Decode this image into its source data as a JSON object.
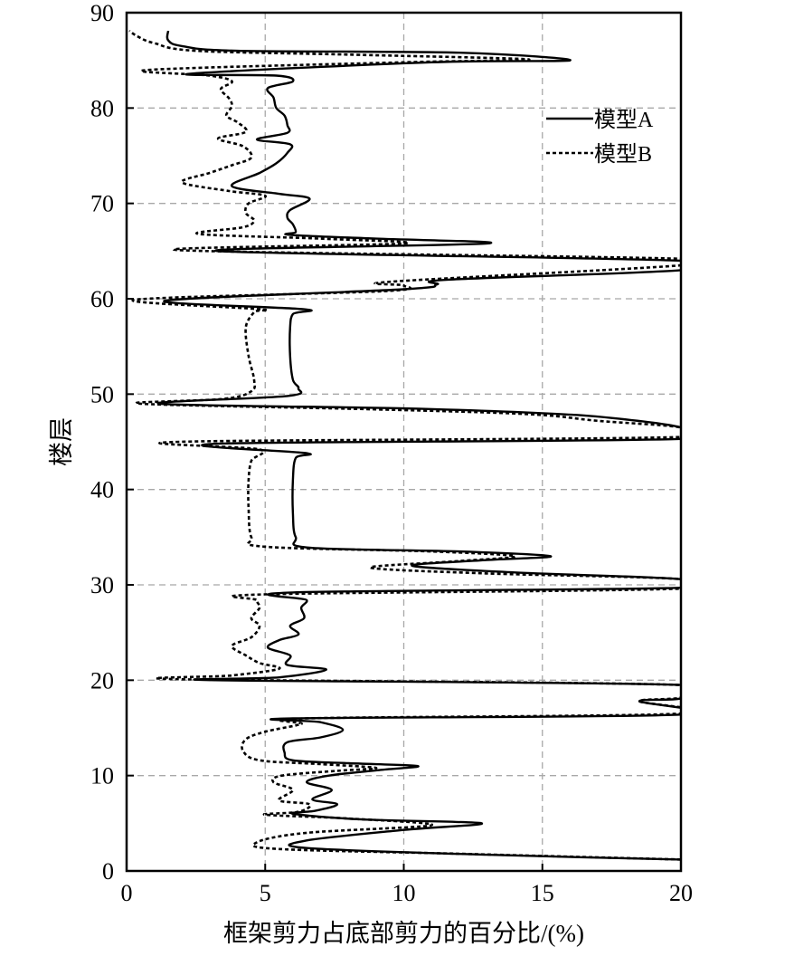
{
  "chart_data": {
    "type": "line",
    "title": "",
    "xlabel": "框架剪力占底部剪力的百分比/(%)",
    "ylabel": "楼层",
    "xlim": [
      0,
      20
    ],
    "ylim": [
      0,
      90
    ],
    "xticks": [
      0,
      5,
      10,
      15,
      20
    ],
    "yticks": [
      0,
      10,
      20,
      30,
      40,
      50,
      60,
      70,
      80,
      90
    ],
    "grid": true,
    "legend_position": "top-right",
    "series": [
      {
        "name": "模型A",
        "style": "solid",
        "color": "#000000",
        "points": [
          [
            20,
            1.2
          ],
          [
            13,
            1.7
          ],
          [
            6.5,
            2.4
          ],
          [
            6.5,
            3.2
          ],
          [
            10,
            4.3
          ],
          [
            12.8,
            5.0
          ],
          [
            8.5,
            5.4
          ],
          [
            6.0,
            6.0
          ],
          [
            6.8,
            6.3
          ],
          [
            7.6,
            7.0
          ],
          [
            6.7,
            7.5
          ],
          [
            7.4,
            8.5
          ],
          [
            6.5,
            9.3
          ],
          [
            7.3,
            10.0
          ],
          [
            9.2,
            10.6
          ],
          [
            10.5,
            11.0
          ],
          [
            8.0,
            11.3
          ],
          [
            6.0,
            11.6
          ],
          [
            5.7,
            12.4
          ],
          [
            5.8,
            13.5
          ],
          [
            7.0,
            14.0
          ],
          [
            7.8,
            14.8
          ],
          [
            7.0,
            15.6
          ],
          [
            6.0,
            16.0
          ],
          [
            20,
            16.4
          ],
          [
            18.5,
            17.8
          ],
          [
            20,
            18.1
          ],
          [
            20,
            19.5
          ],
          [
            3.2,
            20.0
          ],
          [
            5.5,
            20.3
          ],
          [
            7.2,
            21.1
          ],
          [
            5.8,
            21.6
          ],
          [
            5.9,
            22.6
          ],
          [
            5.1,
            23.4
          ],
          [
            5.5,
            24.2
          ],
          [
            6.2,
            24.8
          ],
          [
            5.9,
            25.7
          ],
          [
            6.4,
            26.5
          ],
          [
            6.3,
            27.6
          ],
          [
            6.5,
            28.4
          ],
          [
            6.0,
            29.2
          ],
          [
            20,
            29.7
          ],
          [
            20,
            30.6
          ],
          [
            14.0,
            31.3
          ],
          [
            10.3,
            32.0
          ],
          [
            13.0,
            32.6
          ],
          [
            15.3,
            33.0
          ],
          [
            12.0,
            33.5
          ],
          [
            6.6,
            33.9
          ],
          [
            6.1,
            35.0
          ],
          [
            6.0,
            37.5
          ],
          [
            6.0,
            41.0
          ],
          [
            6.1,
            43.3
          ],
          [
            6.5,
            43.8
          ],
          [
            3.3,
            44.8
          ],
          [
            20,
            45.3
          ],
          [
            20,
            46.5
          ],
          [
            17.5,
            47.5
          ],
          [
            15.0,
            48.0
          ],
          [
            10.0,
            48.5
          ],
          [
            1.2,
            49.0
          ],
          [
            5.8,
            49.8
          ],
          [
            6.2,
            50.6
          ],
          [
            6.0,
            51.5
          ],
          [
            5.9,
            54.0
          ],
          [
            5.9,
            57.0
          ],
          [
            6.0,
            58.4
          ],
          [
            6.4,
            58.9
          ],
          [
            1.4,
            59.8
          ],
          [
            10.0,
            61.0
          ],
          [
            11.2,
            61.5
          ],
          [
            11.6,
            62.0
          ],
          [
            20,
            63.0
          ],
          [
            20,
            64.0
          ],
          [
            3.3,
            65.0
          ],
          [
            13.0,
            65.8
          ],
          [
            9.0,
            66.3
          ],
          [
            5.9,
            66.7
          ],
          [
            6.1,
            67.0
          ],
          [
            6.0,
            67.8
          ],
          [
            5.8,
            68.5
          ],
          [
            5.9,
            69.3
          ],
          [
            6.6,
            70.5
          ],
          [
            5.5,
            71.0
          ],
          [
            3.8,
            71.8
          ],
          [
            4.8,
            73.2
          ],
          [
            5.4,
            74.2
          ],
          [
            5.8,
            75.3
          ],
          [
            5.9,
            76.2
          ],
          [
            4.7,
            76.7
          ],
          [
            5.8,
            77.4
          ],
          [
            5.8,
            78.2
          ],
          [
            5.7,
            79.2
          ],
          [
            5.4,
            80.0
          ],
          [
            5.3,
            81.1
          ],
          [
            5.1,
            82.1
          ],
          [
            6.0,
            82.8
          ],
          [
            5.4,
            83.4
          ],
          [
            2.3,
            83.6
          ],
          [
            11.0,
            84.8
          ],
          [
            16.0,
            85.0
          ],
          [
            12.0,
            85.8
          ],
          [
            4.0,
            86.0
          ],
          [
            2.0,
            86.5
          ],
          [
            1.5,
            87.1
          ],
          [
            1.5,
            88.1
          ]
        ]
      },
      {
        "name": "模型B",
        "style": "dashed",
        "color": "#000000",
        "points": [
          [
            20,
            1.2
          ],
          [
            12,
            1.8
          ],
          [
            5.5,
            2.3
          ],
          [
            4.7,
            3.0
          ],
          [
            6.5,
            4.0
          ],
          [
            11.0,
            4.8
          ],
          [
            8.0,
            5.5
          ],
          [
            5.0,
            5.9
          ],
          [
            6.2,
            6.2
          ],
          [
            6.6,
            7.0
          ],
          [
            5.5,
            7.4
          ],
          [
            6.0,
            8.5
          ],
          [
            5.3,
            9.3
          ],
          [
            5.6,
            10.0
          ],
          [
            7.6,
            10.5
          ],
          [
            9.0,
            10.8
          ],
          [
            7.0,
            11.2
          ],
          [
            4.8,
            11.6
          ],
          [
            4.2,
            12.6
          ],
          [
            4.3,
            13.8
          ],
          [
            5.0,
            14.6
          ],
          [
            6.3,
            15.4
          ],
          [
            6.5,
            16.0
          ],
          [
            20,
            16.5
          ],
          [
            18.5,
            17.8
          ],
          [
            20,
            18.2
          ],
          [
            20,
            19.5
          ],
          [
            2.0,
            20.1
          ],
          [
            3.8,
            20.5
          ],
          [
            5.5,
            21.2
          ],
          [
            4.8,
            21.8
          ],
          [
            4.3,
            22.6
          ],
          [
            3.8,
            23.6
          ],
          [
            4.5,
            24.5
          ],
          [
            4.8,
            25.7
          ],
          [
            4.5,
            26.5
          ],
          [
            4.8,
            27.6
          ],
          [
            4.7,
            28.4
          ],
          [
            5.0,
            29.0
          ],
          [
            20,
            29.6
          ],
          [
            20,
            30.6
          ],
          [
            13.0,
            31.2
          ],
          [
            8.8,
            31.8
          ],
          [
            12.0,
            32.5
          ],
          [
            14.0,
            33.0
          ],
          [
            11.0,
            33.5
          ],
          [
            5.0,
            34.0
          ],
          [
            4.5,
            35.0
          ],
          [
            4.4,
            38.0
          ],
          [
            4.4,
            41.0
          ],
          [
            4.5,
            43.0
          ],
          [
            4.8,
            44.2
          ],
          [
            1.9,
            45.0
          ],
          [
            20,
            45.5
          ],
          [
            20,
            46.5
          ],
          [
            17.0,
            47.2
          ],
          [
            14.5,
            47.9
          ],
          [
            9.0,
            48.4
          ],
          [
            0.5,
            49.0
          ],
          [
            3.5,
            49.5
          ],
          [
            4.5,
            50.3
          ],
          [
            4.6,
            51.5
          ],
          [
            4.4,
            54.0
          ],
          [
            4.3,
            57.0
          ],
          [
            4.6,
            58.6
          ],
          [
            4.8,
            58.9
          ],
          [
            0.3,
            59.9
          ],
          [
            9.3,
            60.8
          ],
          [
            10.0,
            61.4
          ],
          [
            9.6,
            61.8
          ],
          [
            20,
            63.5
          ],
          [
            20,
            64.2
          ],
          [
            1.9,
            65.1
          ],
          [
            10.0,
            65.8
          ],
          [
            7.0,
            66.3
          ],
          [
            2.6,
            66.8
          ],
          [
            4.2,
            67.5
          ],
          [
            4.6,
            68.2
          ],
          [
            4.3,
            69.0
          ],
          [
            4.4,
            70.0
          ],
          [
            5.0,
            70.8
          ],
          [
            3.7,
            71.3
          ],
          [
            2.0,
            72.2
          ],
          [
            3.0,
            73.2
          ],
          [
            3.8,
            74.0
          ],
          [
            4.5,
            74.8
          ],
          [
            4.2,
            76.0
          ],
          [
            3.3,
            76.8
          ],
          [
            4.3,
            77.5
          ],
          [
            4.0,
            78.5
          ],
          [
            3.6,
            79.2
          ],
          [
            3.8,
            80.2
          ],
          [
            3.7,
            81.0
          ],
          [
            3.4,
            82.0
          ],
          [
            3.8,
            82.8
          ],
          [
            3.0,
            83.4
          ],
          [
            0.8,
            84.0
          ],
          [
            10.0,
            84.8
          ],
          [
            14.5,
            85.1
          ],
          [
            8.0,
            85.6
          ],
          [
            2.5,
            86.0
          ],
          [
            1.0,
            86.8
          ],
          [
            0.4,
            87.5
          ],
          [
            0.1,
            88.1
          ]
        ]
      }
    ]
  }
}
